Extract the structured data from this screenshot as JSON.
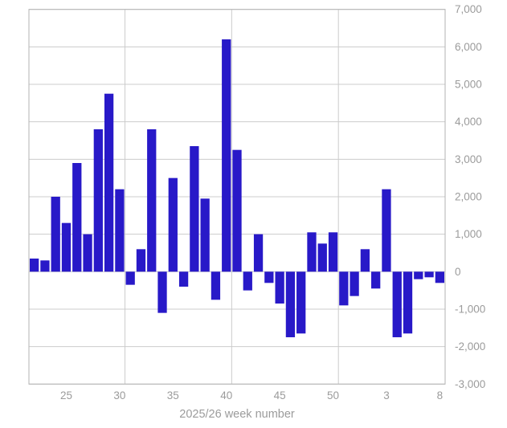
{
  "chart_data": {
    "type": "bar",
    "title": "",
    "xlabel": "2025/26 week number",
    "ylabel": "",
    "categories": [
      "22",
      "23",
      "24",
      "25",
      "26",
      "27",
      "28",
      "29",
      "30",
      "31",
      "32",
      "33",
      "34",
      "35",
      "36",
      "37",
      "38",
      "39",
      "40",
      "41",
      "42",
      "43",
      "44",
      "45",
      "46",
      "47",
      "48",
      "49",
      "50",
      "51",
      "52",
      "1",
      "2",
      "3",
      "4",
      "5",
      "6",
      "7",
      "8"
    ],
    "values": [
      350,
      300,
      2000,
      1300,
      2900,
      1000,
      3800,
      4750,
      2200,
      -350,
      600,
      3800,
      -1100,
      2500,
      -400,
      3350,
      1950,
      -750,
      6200,
      3250,
      -500,
      1000,
      -300,
      -850,
      -1750,
      -1650,
      1050,
      750,
      1050,
      -900,
      -650,
      600,
      -450,
      2200,
      -1750,
      -1650,
      -200,
      -150,
      -300
    ],
    "x_tick_labels": [
      "25",
      "30",
      "35",
      "40",
      "45",
      "50",
      "3",
      "8"
    ],
    "gridline_after_categories": [
      "30",
      "40",
      "50"
    ],
    "ylim": [
      -3000,
      7000
    ],
    "y_step": 1000,
    "y_tick_labels": [
      "7,000",
      "6,000",
      "5,000",
      "4,000",
      "3,000",
      "2,000",
      "1,000",
      "0",
      "-1,000",
      "-2,000",
      "-3,000"
    ],
    "grid": true,
    "legend": "none",
    "y_axis_side": "right",
    "colors": {
      "bar": "#2819c8",
      "gridline": "#cccccc",
      "plot_border": "#b3b3b3",
      "tick_label": "#9b9b9b",
      "axis_title": "#9b9b9b",
      "background": "#ffffff"
    }
  }
}
